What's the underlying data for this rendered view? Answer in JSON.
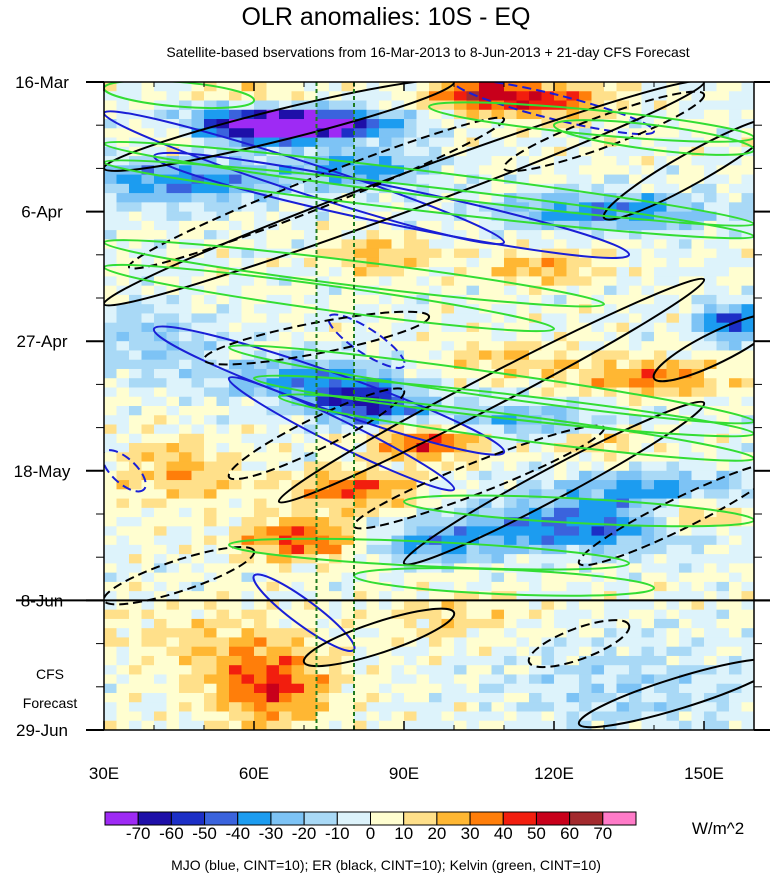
{
  "chart_data": {
    "type": "heatmap",
    "title": "OLR anomalies: 10S - EQ",
    "subtitle": "Satellite-based bservations from 16-Mar-2013 to 8-Jun-2013 + 21-day CFS Forecast",
    "x_axis": {
      "ticks": [
        {
          "value": 30,
          "label": "30E"
        },
        {
          "value": 60,
          "label": "60E"
        },
        {
          "value": 90,
          "label": "90E"
        },
        {
          "value": 120,
          "label": "120E"
        },
        {
          "value": 150,
          "label": "150E"
        }
      ],
      "range": [
        30,
        160
      ],
      "minor_step": 10
    },
    "y_axis": {
      "reversed": true,
      "unit": "days since 16-Mar",
      "ticks": [
        {
          "value": 0,
          "label": "16-Mar"
        },
        {
          "value": 21,
          "label": "6-Apr"
        },
        {
          "value": 42,
          "label": "27-Apr"
        },
        {
          "value": 63,
          "label": "18-May"
        },
        {
          "value": 84,
          "label": "8-Jun"
        },
        {
          "value": 105,
          "label": "29-Jun"
        }
      ],
      "range": [
        0,
        105
      ],
      "minor_step": 7
    },
    "forecast_label": [
      "CFS",
      "Forecast"
    ],
    "forecast_start": 84,
    "reference_lons": [
      72.5,
      80
    ],
    "colorbar": {
      "levels": [
        -70,
        -60,
        -50,
        -40,
        -30,
        -20,
        -10,
        0,
        10,
        20,
        30,
        40,
        50,
        60,
        70
      ],
      "labels": [
        "-70",
        "-60",
        "-50",
        "-40",
        "-30",
        "-20",
        "-10",
        "0",
        "10",
        "20",
        "30",
        "40",
        "50",
        "60",
        "70"
      ],
      "colors": [
        "#9E2AF4",
        "#1E0FA8",
        "#1C2FC6",
        "#3A63DD",
        "#1C9CF0",
        "#7DC3F5",
        "#A9D9F6",
        "#DDF3FB",
        "#FFFED0",
        "#FFE08A",
        "#FFB733",
        "#FF7E0A",
        "#F21E0E",
        "#C8001B",
        "#A32A2E",
        "#FF7BC8"
      ],
      "units": "W/m^2"
    },
    "footer": "MJO (blue, CINT=10); ER (black, CINT=10); Kelvin (green, CINT=10)",
    "series": [
      {
        "name": "MJO",
        "color": "#1a1fd6"
      },
      {
        "name": "ER",
        "color": "#000000"
      },
      {
        "name": "Kelvin",
        "color": "#33dd33"
      }
    ],
    "anomaly_features": [
      {
        "lon": 72,
        "day": 7,
        "value": -75,
        "rlon": 16,
        "rday": 2.5
      },
      {
        "lon": 58,
        "day": 7,
        "value": -50,
        "rlon": 14,
        "rday": 3
      },
      {
        "lon": 45,
        "day": 16,
        "value": -40,
        "rlon": 20,
        "rday": 4
      },
      {
        "lon": 82,
        "day": 14,
        "value": -35,
        "rlon": 14,
        "rday": 3
      },
      {
        "lon": 130,
        "day": 21,
        "value": -40,
        "rlon": 22,
        "rday": 3
      },
      {
        "lon": 155,
        "day": 39,
        "value": -55,
        "rlon": 6,
        "rday": 3
      },
      {
        "lon": 82,
        "day": 52,
        "value": -60,
        "rlon": 10,
        "rday": 3
      },
      {
        "lon": 70,
        "day": 48,
        "value": -35,
        "rlon": 18,
        "rday": 3.5
      },
      {
        "lon": 110,
        "day": 55,
        "value": -30,
        "rlon": 25,
        "rday": 3
      },
      {
        "lon": 125,
        "day": 72,
        "value": -45,
        "rlon": 25,
        "rday": 4
      },
      {
        "lon": 95,
        "day": 75,
        "value": -30,
        "rlon": 14,
        "rday": 3
      },
      {
        "lon": 140,
        "day": 66,
        "value": -35,
        "rlon": 20,
        "rday": 3
      },
      {
        "lon": 40,
        "day": 42,
        "value": -20,
        "rlon": 12,
        "rday": 6
      },
      {
        "lon": 135,
        "day": 98,
        "value": -15,
        "rlon": 25,
        "rday": 8
      },
      {
        "lon": 105,
        "day": 2,
        "value": 50,
        "rlon": 10,
        "rday": 2.5
      },
      {
        "lon": 120,
        "day": 3,
        "value": 40,
        "rlon": 12,
        "rday": 3
      },
      {
        "lon": 45,
        "day": 9,
        "value": 20,
        "rlon": 8,
        "rday": 3
      },
      {
        "lon": 60,
        "day": 2,
        "value": 20,
        "rlon": 10,
        "rday": 2
      },
      {
        "lon": 85,
        "day": 28,
        "value": 25,
        "rlon": 10,
        "rday": 3
      },
      {
        "lon": 118,
        "day": 30,
        "value": 25,
        "rlon": 12,
        "rday": 3
      },
      {
        "lon": 140,
        "day": 48,
        "value": 35,
        "rlon": 14,
        "rday": 3
      },
      {
        "lon": 95,
        "day": 58,
        "value": 50,
        "rlon": 12,
        "rday": 3
      },
      {
        "lon": 80,
        "day": 66,
        "value": 40,
        "rlon": 12,
        "rday": 3
      },
      {
        "lon": 70,
        "day": 74,
        "value": 45,
        "rlon": 12,
        "rday": 3.5
      },
      {
        "lon": 45,
        "day": 63,
        "value": 25,
        "rlon": 12,
        "rday": 5
      },
      {
        "lon": 148,
        "day": 70,
        "value": 40,
        "rlon": 10,
        "rday": 3
      },
      {
        "lon": 63,
        "day": 98,
        "value": 45,
        "rlon": 12,
        "rday": 6
      },
      {
        "lon": 100,
        "day": 87,
        "value": 15,
        "rlon": 15,
        "rday": 4
      },
      {
        "lon": 110,
        "day": 45,
        "value": 20,
        "rlon": 15,
        "rday": 3
      },
      {
        "lon": 130,
        "day": 58,
        "value": 20,
        "rlon": 10,
        "rday": 3
      },
      {
        "lon": 50,
        "day": 90,
        "value": 15,
        "rlon": 20,
        "rday": 5
      }
    ],
    "contours": {
      "mjo": [
        {
          "lon1": 30,
          "day1": 5,
          "lon2": 110,
          "day2": 26,
          "width": 2.5,
          "dashed": false
        },
        {
          "lon1": 40,
          "day1": 12,
          "lon2": 135,
          "day2": 28,
          "width": 3,
          "dashed": false
        },
        {
          "lon1": 40,
          "day1": 40,
          "lon2": 110,
          "day2": 60,
          "width": 3,
          "dashed": false
        },
        {
          "lon1": 55,
          "day1": 48,
          "lon2": 100,
          "day2": 66,
          "width": 2,
          "dashed": false
        },
        {
          "lon1": 60,
          "day1": 80,
          "lon2": 80,
          "day2": 92,
          "width": 2,
          "dashed": false
        },
        {
          "lon1": 100,
          "day1": 0,
          "lon2": 140,
          "day2": 8,
          "width": 2,
          "dashed": true
        },
        {
          "lon1": 30,
          "day1": 60,
          "lon2": 38,
          "day2": 66,
          "width": 2,
          "dashed": true
        },
        {
          "lon1": 75,
          "day1": 38,
          "lon2": 90,
          "day2": 46,
          "width": 2,
          "dashed": true
        }
      ],
      "er": [
        {
          "lon1": 30,
          "day1": 36,
          "lon2": 150,
          "day2": 0,
          "width": 3,
          "dashed": false
        },
        {
          "lon1": 30,
          "day1": 14,
          "lon2": 100,
          "day2": 0,
          "width": 2.5,
          "dashed": false
        },
        {
          "lon1": 35,
          "day1": 30,
          "lon2": 110,
          "day2": 6,
          "width": 2.5,
          "dashed": true
        },
        {
          "lon1": 65,
          "day1": 68,
          "lon2": 150,
          "day2": 32,
          "width": 2.5,
          "dashed": false
        },
        {
          "lon1": 90,
          "day1": 78,
          "lon2": 150,
          "day2": 52,
          "width": 2.5,
          "dashed": false
        },
        {
          "lon1": 50,
          "day1": 45,
          "lon2": 95,
          "day2": 38,
          "width": 2.5,
          "dashed": true
        },
        {
          "lon1": 55,
          "day1": 64,
          "lon2": 90,
          "day2": 50,
          "width": 2.5,
          "dashed": true
        },
        {
          "lon1": 30,
          "day1": 84,
          "lon2": 60,
          "day2": 76,
          "width": 2.5,
          "dashed": true
        },
        {
          "lon1": 80,
          "day1": 72,
          "lon2": 130,
          "day2": 56,
          "width": 2.5,
          "dashed": true
        },
        {
          "lon1": 70,
          "day1": 94,
          "lon2": 100,
          "day2": 86,
          "width": 2.5,
          "dashed": false
        },
        {
          "lon1": 115,
          "day1": 94,
          "lon2": 135,
          "day2": 88,
          "width": 2.5,
          "dashed": true
        },
        {
          "lon1": 125,
          "day1": 104,
          "lon2": 165,
          "day2": 94,
          "width": 2.5,
          "dashed": false
        },
        {
          "lon1": 125,
          "day1": 78,
          "lon2": 165,
          "day2": 62,
          "width": 2.5,
          "dashed": true
        },
        {
          "lon1": 130,
          "day1": 22,
          "lon2": 165,
          "day2": 6,
          "width": 2.5,
          "dashed": false
        },
        {
          "lon1": 110,
          "day1": 14,
          "lon2": 150,
          "day2": 2,
          "width": 2.5,
          "dashed": true
        },
        {
          "lon1": 140,
          "day1": 48,
          "lon2": 165,
          "day2": 38,
          "width": 2.5,
          "dashed": false
        }
      ],
      "kelvin": [
        {
          "lon1": 30,
          "day1": 1,
          "lon2": 60,
          "day2": 3,
          "width": 2,
          "dashed": false
        },
        {
          "lon1": 30,
          "day1": 10,
          "lon2": 160,
          "day2": 23,
          "width": 2,
          "dashed": false
        },
        {
          "lon1": 30,
          "day1": 13,
          "lon2": 160,
          "day2": 25,
          "width": 2,
          "dashed": false
        },
        {
          "lon1": 30,
          "day1": 26,
          "lon2": 130,
          "day2": 36,
          "width": 2,
          "dashed": false
        },
        {
          "lon1": 30,
          "day1": 30,
          "lon2": 120,
          "day2": 40,
          "width": 2,
          "dashed": false
        },
        {
          "lon1": 55,
          "day1": 43,
          "lon2": 160,
          "day2": 55,
          "width": 2,
          "dashed": false
        },
        {
          "lon1": 60,
          "day1": 48,
          "lon2": 160,
          "day2": 57,
          "width": 2,
          "dashed": false
        },
        {
          "lon1": 65,
          "day1": 51,
          "lon2": 160,
          "day2": 61,
          "width": 2,
          "dashed": false
        },
        {
          "lon1": 90,
          "day1": 68,
          "lon2": 160,
          "day2": 71,
          "width": 2,
          "dashed": false
        },
        {
          "lon1": 55,
          "day1": 75,
          "lon2": 135,
          "day2": 78,
          "width": 2,
          "dashed": false
        },
        {
          "lon1": 80,
          "day1": 80,
          "lon2": 140,
          "day2": 82,
          "width": 2,
          "dashed": false
        },
        {
          "lon1": 95,
          "day1": 4,
          "lon2": 160,
          "day2": 9,
          "width": 2,
          "dashed": false
        },
        {
          "lon1": 120,
          "day1": 7,
          "lon2": 160,
          "day2": 11,
          "width": 2,
          "dashed": false
        }
      ]
    }
  }
}
